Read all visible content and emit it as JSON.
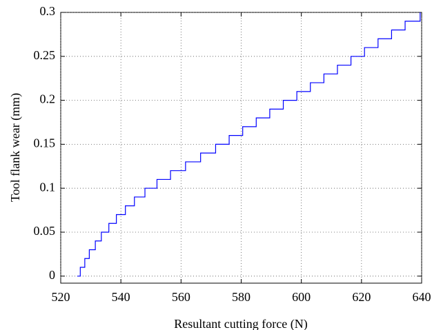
{
  "chart_data": {
    "type": "step",
    "xlabel": "Resultant cutting force (N)",
    "ylabel": "Tool flank wear (mm)",
    "x": [
      525.5,
      526.5,
      528,
      529.5,
      531.5,
      533.5,
      536,
      538.5,
      541.5,
      544.5,
      548,
      552,
      556.5,
      561.5,
      566.5,
      571.5,
      576,
      580.5,
      585,
      589.5,
      594,
      598.5,
      603,
      607.5,
      612,
      616.5,
      621,
      625.5,
      630,
      634.5,
      639.5
    ],
    "series": [
      {
        "color": "#0000ff",
        "values": [
          0,
          0.01,
          0.02,
          0.03,
          0.04,
          0.05,
          0.06,
          0.07,
          0.08,
          0.09,
          0.1,
          0.11,
          0.12,
          0.13,
          0.14,
          0.15,
          0.16,
          0.17,
          0.18,
          0.19,
          0.2,
          0.21,
          0.22,
          0.23,
          0.24,
          0.25,
          0.26,
          0.27,
          0.28,
          0.29,
          0.3
        ]
      }
    ],
    "xlim": [
      520,
      640
    ],
    "xticks": [
      520,
      540,
      560,
      580,
      600,
      620,
      640
    ],
    "ylim": [
      -0.008,
      0.3
    ],
    "yticks": [
      0,
      0.05,
      0.1,
      0.15,
      0.2,
      0.25,
      0.3
    ],
    "grid": true
  }
}
